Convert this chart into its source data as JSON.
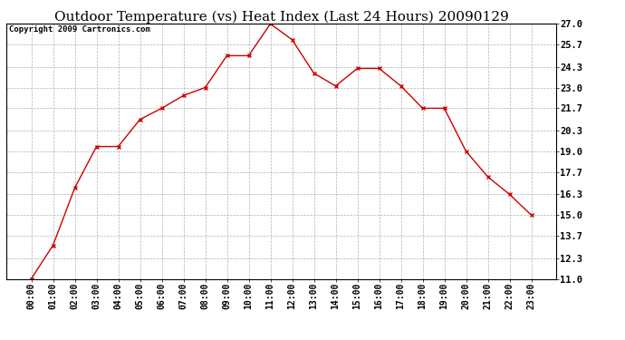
{
  "title": "Outdoor Temperature (vs) Heat Index (Last 24 Hours) 20090129",
  "copyright": "Copyright 2009 Cartronics.com",
  "x_labels": [
    "00:00",
    "01:00",
    "02:00",
    "03:00",
    "04:00",
    "05:00",
    "06:00",
    "07:00",
    "08:00",
    "09:00",
    "10:00",
    "11:00",
    "12:00",
    "13:00",
    "14:00",
    "15:00",
    "16:00",
    "17:00",
    "18:00",
    "19:00",
    "20:00",
    "21:00",
    "22:00",
    "23:00"
  ],
  "y_values": [
    11.0,
    13.1,
    16.7,
    19.3,
    19.3,
    21.0,
    21.7,
    22.5,
    23.0,
    25.0,
    25.0,
    27.0,
    26.0,
    23.9,
    23.1,
    24.2,
    24.2,
    23.1,
    21.7,
    21.7,
    19.0,
    17.4,
    16.3,
    15.0
  ],
  "y_ticks": [
    11.0,
    12.3,
    13.7,
    15.0,
    16.3,
    17.7,
    19.0,
    20.3,
    21.7,
    23.0,
    24.3,
    25.7,
    27.0
  ],
  "ylim": [
    11.0,
    27.0
  ],
  "line_color": "#cc0000",
  "marker": "x",
  "marker_color": "#cc0000",
  "bg_color": "#ffffff",
  "grid_color": "#b0b0b0",
  "title_fontsize": 11,
  "copyright_fontsize": 6.5,
  "tick_fontsize": 7,
  "ytick_fontsize": 7.5
}
